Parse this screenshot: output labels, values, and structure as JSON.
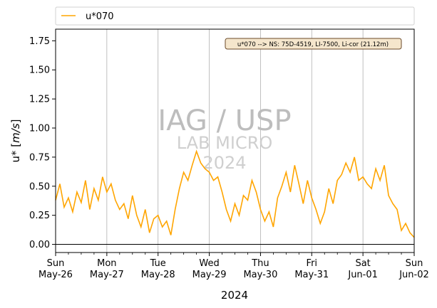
{
  "chart_data": {
    "type": "line",
    "title": "",
    "xlabel": "2024",
    "ylabel": "u* [m/s]",
    "ylim": [
      -0.07,
      1.85
    ],
    "yticks": [
      0.0,
      0.25,
      0.5,
      0.75,
      1.0,
      1.25,
      1.5,
      1.75
    ],
    "ytick_labels": [
      "0.00",
      "0.25",
      "0.50",
      "0.75",
      "1.00",
      "1.25",
      "1.50",
      "1.75"
    ],
    "xlim": [
      "2024-05-26",
      "2024-06-02"
    ],
    "xtick_labels": [
      {
        "day": "Sun",
        "date": "May-26"
      },
      {
        "day": "Mon",
        "date": "May-27"
      },
      {
        "day": "Tue",
        "date": "May-28"
      },
      {
        "day": "Wed",
        "date": "May-29"
      },
      {
        "day": "Thu",
        "date": "May-30"
      },
      {
        "day": "Fri",
        "date": "May-31"
      },
      {
        "day": "Sat",
        "date": "Jun-01"
      },
      {
        "day": "Sun",
        "date": "Jun-02"
      }
    ],
    "grid": "vertical lines at day ticks",
    "zero_line": true,
    "legend": {
      "placement": "top, above plot",
      "entries": [
        "u*070"
      ]
    },
    "annotation": "u*070 --> NS: 75D-4519, LI-7500, Li-cor (21.12m)",
    "watermark": [
      "IAG / USP",
      "LAB MICRO",
      "2024"
    ],
    "series": [
      {
        "name": "u*070",
        "color": "#FFA500",
        "x": [
          "2024-05-26 00:00",
          "2024-05-26 02:00",
          "2024-05-26 04:00",
          "2024-05-26 06:00",
          "2024-05-26 08:00",
          "2024-05-26 10:00",
          "2024-05-26 12:00",
          "2024-05-26 14:00",
          "2024-05-26 16:00",
          "2024-05-26 18:00",
          "2024-05-26 20:00",
          "2024-05-26 22:00",
          "2024-05-27 00:00",
          "2024-05-27 02:00",
          "2024-05-27 04:00",
          "2024-05-27 06:00",
          "2024-05-27 08:00",
          "2024-05-27 10:00",
          "2024-05-27 12:00",
          "2024-05-27 14:00",
          "2024-05-27 16:00",
          "2024-05-27 18:00",
          "2024-05-27 20:00",
          "2024-05-27 22:00",
          "2024-05-28 00:00",
          "2024-05-28 02:00",
          "2024-05-28 04:00",
          "2024-05-28 06:00",
          "2024-05-28 08:00",
          "2024-05-28 10:00",
          "2024-05-28 12:00",
          "2024-05-28 14:00",
          "2024-05-28 16:00",
          "2024-05-28 18:00",
          "2024-05-28 20:00",
          "2024-05-28 22:00",
          "2024-05-29 00:00",
          "2024-05-29 02:00",
          "2024-05-29 04:00",
          "2024-05-29 06:00",
          "2024-05-29 08:00",
          "2024-05-29 10:00",
          "2024-05-29 12:00",
          "2024-05-29 14:00",
          "2024-05-29 16:00",
          "2024-05-29 18:00",
          "2024-05-29 20:00",
          "2024-05-29 22:00",
          "2024-05-30 00:00",
          "2024-05-30 02:00",
          "2024-05-30 04:00",
          "2024-05-30 06:00",
          "2024-05-30 08:00",
          "2024-05-30 10:00",
          "2024-05-30 12:00",
          "2024-05-30 14:00",
          "2024-05-30 16:00",
          "2024-05-30 18:00",
          "2024-05-30 20:00",
          "2024-05-30 22:00",
          "2024-05-31 00:00",
          "2024-05-31 02:00",
          "2024-05-31 04:00",
          "2024-05-31 06:00",
          "2024-05-31 08:00",
          "2024-05-31 10:00",
          "2024-05-31 12:00",
          "2024-05-31 14:00",
          "2024-05-31 16:00",
          "2024-05-31 18:00",
          "2024-05-31 20:00",
          "2024-05-31 22:00",
          "2024-06-01 00:00",
          "2024-06-01 02:00",
          "2024-06-01 04:00",
          "2024-06-01 06:00",
          "2024-06-01 08:00",
          "2024-06-01 10:00",
          "2024-06-01 12:00",
          "2024-06-01 14:00",
          "2024-06-01 16:00",
          "2024-06-01 18:00",
          "2024-06-01 20:00",
          "2024-06-01 22:00",
          "2024-06-02 00:00"
        ],
        "y": [
          0.38,
          0.52,
          0.32,
          0.4,
          0.28,
          0.45,
          0.36,
          0.55,
          0.3,
          0.48,
          0.38,
          0.58,
          0.45,
          0.52,
          0.38,
          0.3,
          0.35,
          0.22,
          0.42,
          0.25,
          0.15,
          0.3,
          0.1,
          0.22,
          0.25,
          0.15,
          0.2,
          0.08,
          0.3,
          0.48,
          0.62,
          0.55,
          0.68,
          0.8,
          0.7,
          0.65,
          0.62,
          0.55,
          0.58,
          0.45,
          0.3,
          0.2,
          0.35,
          0.25,
          0.42,
          0.38,
          0.55,
          0.45,
          0.3,
          0.2,
          0.28,
          0.15,
          0.4,
          0.5,
          0.62,
          0.45,
          0.68,
          0.52,
          0.35,
          0.55,
          0.4,
          0.3,
          0.18,
          0.28,
          0.48,
          0.35,
          0.55,
          0.6,
          0.7,
          0.62,
          0.75,
          0.55,
          0.58,
          0.52,
          0.48,
          0.65,
          0.55,
          0.68,
          0.42,
          0.35,
          0.3,
          0.12,
          0.18,
          0.1,
          0.06
        ]
      }
    ]
  }
}
